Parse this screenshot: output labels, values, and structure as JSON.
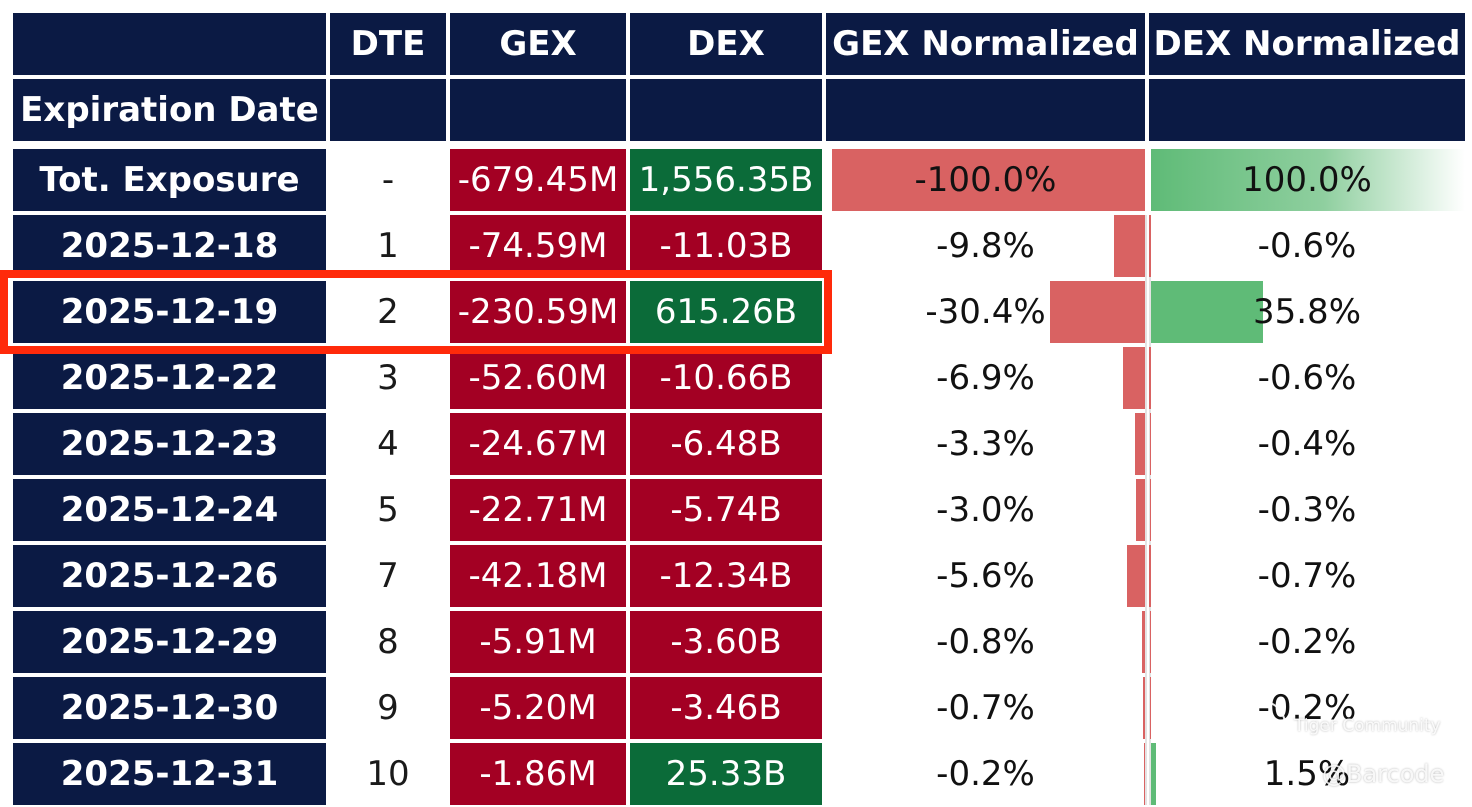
{
  "table": {
    "headers": {
      "dte": "DTE",
      "gex": "GEX",
      "dex": "DEX",
      "gex_normalized": "GEX Normalized",
      "dex_normalized": "DEX Normalized",
      "index_label": "Expiration Date"
    },
    "rows": [
      {
        "date": "Tot. Exposure",
        "dte": "-",
        "gex": "-679.45M",
        "dex": "1,556.35B",
        "gex_norm": "-100.0%",
        "dex_norm": "100.0%",
        "gex_pct": -100.0,
        "dex_pct": 100.0
      },
      {
        "date": "2025-12-18",
        "dte": "1",
        "gex": "-74.59M",
        "dex": "-11.03B",
        "gex_norm": "-9.8%",
        "dex_norm": "-0.6%",
        "gex_pct": -9.8,
        "dex_pct": -0.6
      },
      {
        "date": "2025-12-19",
        "dte": "2",
        "gex": "-230.59M",
        "dex": "615.26B",
        "gex_norm": "-30.4%",
        "dex_norm": "35.8%",
        "gex_pct": -30.4,
        "dex_pct": 35.8
      },
      {
        "date": "2025-12-22",
        "dte": "3",
        "gex": "-52.60M",
        "dex": "-10.66B",
        "gex_norm": "-6.9%",
        "dex_norm": "-0.6%",
        "gex_pct": -6.9,
        "dex_pct": -0.6
      },
      {
        "date": "2025-12-23",
        "dte": "4",
        "gex": "-24.67M",
        "dex": "-6.48B",
        "gex_norm": "-3.3%",
        "dex_norm": "-0.4%",
        "gex_pct": -3.3,
        "dex_pct": -0.4
      },
      {
        "date": "2025-12-24",
        "dte": "5",
        "gex": "-22.71M",
        "dex": "-5.74B",
        "gex_norm": "-3.0%",
        "dex_norm": "-0.3%",
        "gex_pct": -3.0,
        "dex_pct": -0.3
      },
      {
        "date": "2025-12-26",
        "dte": "7",
        "gex": "-42.18M",
        "dex": "-12.34B",
        "gex_norm": "-5.6%",
        "dex_norm": "-0.7%",
        "gex_pct": -5.6,
        "dex_pct": -0.7
      },
      {
        "date": "2025-12-29",
        "dte": "8",
        "gex": "-5.91M",
        "dex": "-3.60B",
        "gex_norm": "-0.8%",
        "dex_norm": "-0.2%",
        "gex_pct": -0.8,
        "dex_pct": -0.2
      },
      {
        "date": "2025-12-30",
        "dte": "9",
        "gex": "-5.20M",
        "dex": "-3.46B",
        "gex_norm": "-0.7%",
        "dex_norm": "-0.2%",
        "gex_pct": -0.7,
        "dex_pct": -0.2
      },
      {
        "date": "2025-12-31",
        "dte": "10",
        "gex": "-1.86M",
        "dex": "25.33B",
        "gex_norm": "-0.2%",
        "dex_norm": "1.5%",
        "gex_pct": -0.2,
        "dex_pct": 1.5
      }
    ]
  },
  "watermark": {
    "line1": "Tiger Community",
    "line2": "@Barcode"
  },
  "colors": {
    "header_bg": "#0b1a44",
    "negative_cell": "#a30023",
    "positive_cell": "#0b6b39",
    "negative_bar": "#d96262",
    "positive_bar": "#5fbb77",
    "highlight": "#ff2a0a"
  }
}
